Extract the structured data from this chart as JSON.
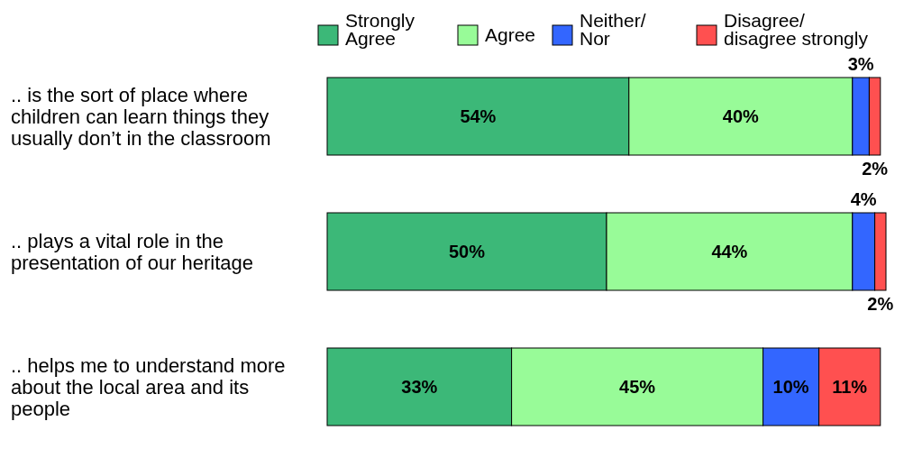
{
  "chart_data": {
    "type": "bar",
    "orientation": "horizontal",
    "stacked": true,
    "legend": "top",
    "categories": [
      ".. is the sort of place where children can learn things they usually don’t in the classroom",
      ".. plays a vital role in the presentation of our heritage",
      ".. helps me to understand more about the local area and its people"
    ],
    "series": [
      {
        "name": "Strongly Agree",
        "color": "#3cb878",
        "values": [
          54,
          50,
          33
        ],
        "value_labels": [
          "54%",
          "50%",
          "33%"
        ]
      },
      {
        "name": "Agree",
        "color": "#98fb98",
        "values": [
          40,
          44,
          45
        ],
        "value_labels": [
          "40%",
          "44%",
          "45%"
        ]
      },
      {
        "name": "Neither/ Nor",
        "color": "#3366ff",
        "values": [
          3,
          4,
          10
        ],
        "value_labels": [
          "3%",
          "4%",
          "10%"
        ]
      },
      {
        "name": "Disagree/ disagree strongly",
        "color": "#ff5050",
        "values": [
          2,
          2,
          11
        ],
        "value_labels": [
          "2%",
          "2%",
          "11%"
        ]
      }
    ]
  }
}
